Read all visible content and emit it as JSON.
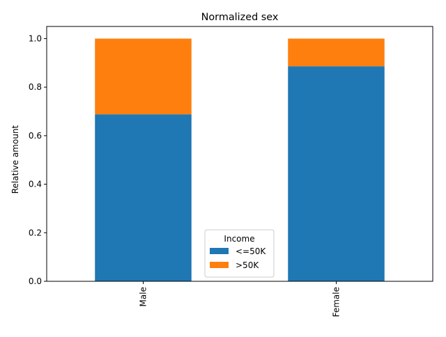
{
  "chart_data": {
    "type": "bar",
    "stacked": true,
    "title": "Normalized sex",
    "xlabel": "",
    "ylabel": "Relative amount",
    "categories": [
      "Male",
      "Female"
    ],
    "series": [
      {
        "name": "<=50K",
        "values": [
          0.688,
          0.886
        ],
        "color": "#1f77b4"
      },
      {
        "name": ">50K",
        "values": [
          0.312,
          0.114
        ],
        "color": "#ff7f0e"
      }
    ],
    "ylim": [
      0,
      1.05
    ],
    "yticks": [
      "0.0",
      "0.2",
      "0.4",
      "0.6",
      "0.8",
      "1.0"
    ],
    "grid": false,
    "legend": {
      "title": "Income",
      "placement": "lower center"
    }
  }
}
